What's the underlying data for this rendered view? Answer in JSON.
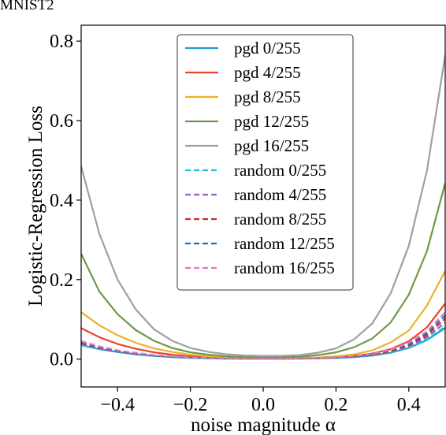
{
  "chart_data": {
    "type": "line",
    "title": "MNIST2",
    "xlabel": "noise magnitude α",
    "ylabel": "Logistic-Regression Loss",
    "xlim": [
      -0.5,
      0.5
    ],
    "ylim": [
      -0.07,
      0.84
    ],
    "xticks": [
      -0.4,
      -0.2,
      0.0,
      0.2,
      0.4
    ],
    "xtick_labels": [
      "−0.4",
      "−0.2",
      "0.0",
      "0.2",
      "0.4"
    ],
    "yticks": [
      0.0,
      0.2,
      0.4,
      0.6,
      0.8
    ],
    "ytick_labels": [
      "0.0",
      "0.2",
      "0.4",
      "0.6",
      "0.8"
    ],
    "grid": false,
    "legend_position": "top-center",
    "x": [
      -0.5,
      -0.45,
      -0.4,
      -0.35,
      -0.3,
      -0.25,
      -0.2,
      -0.15,
      -0.1,
      -0.05,
      0.0,
      0.05,
      0.1,
      0.15,
      0.2,
      0.25,
      0.3,
      0.35,
      0.4,
      0.45,
      0.5
    ],
    "series": [
      {
        "name": "pgd 0/255",
        "style": "solid",
        "color": "#1f9bd4",
        "values": [
          0.035,
          0.025,
          0.018,
          0.012,
          0.008,
          0.005,
          0.003,
          0.002,
          0.001,
          0.001,
          0.001,
          0.001,
          0.001,
          0.002,
          0.003,
          0.005,
          0.009,
          0.016,
          0.028,
          0.048,
          0.078
        ]
      },
      {
        "name": "pgd 4/255",
        "style": "solid",
        "color": "#e8452c",
        "values": [
          0.078,
          0.055,
          0.038,
          0.026,
          0.017,
          0.011,
          0.007,
          0.004,
          0.003,
          0.002,
          0.002,
          0.002,
          0.002,
          0.003,
          0.005,
          0.008,
          0.014,
          0.025,
          0.045,
          0.08,
          0.14
        ]
      },
      {
        "name": "pgd 8/255",
        "style": "solid",
        "color": "#edb12c",
        "values": [
          0.118,
          0.085,
          0.06,
          0.041,
          0.027,
          0.018,
          0.011,
          0.007,
          0.004,
          0.003,
          0.003,
          0.003,
          0.003,
          0.004,
          0.007,
          0.012,
          0.022,
          0.042,
          0.072,
          0.135,
          0.222
        ]
      },
      {
        "name": "pgd 12/255",
        "style": "solid",
        "color": "#6e9a45",
        "values": [
          0.265,
          0.17,
          0.113,
          0.073,
          0.046,
          0.028,
          0.017,
          0.011,
          0.007,
          0.005,
          0.005,
          0.005,
          0.006,
          0.01,
          0.017,
          0.03,
          0.052,
          0.092,
          0.162,
          0.272,
          0.443
        ]
      },
      {
        "name": "pgd 16/255",
        "style": "solid",
        "color": "#a0a0a0",
        "values": [
          0.485,
          0.315,
          0.2,
          0.125,
          0.075,
          0.046,
          0.028,
          0.018,
          0.012,
          0.009,
          0.008,
          0.008,
          0.01,
          0.016,
          0.027,
          0.05,
          0.09,
          0.165,
          0.285,
          0.475,
          0.765
        ]
      },
      {
        "name": "random 0/255",
        "style": "dashed",
        "color": "#26c3d6",
        "values": [
          0.035,
          0.025,
          0.018,
          0.012,
          0.008,
          0.005,
          0.003,
          0.002,
          0.001,
          0.001,
          0.001,
          0.001,
          0.001,
          0.002,
          0.003,
          0.005,
          0.009,
          0.016,
          0.029,
          0.05,
          0.082
        ]
      },
      {
        "name": "random 4/255",
        "style": "dashed",
        "color": "#8e63b8",
        "values": [
          0.038,
          0.027,
          0.019,
          0.013,
          0.009,
          0.006,
          0.004,
          0.002,
          0.002,
          0.001,
          0.001,
          0.001,
          0.002,
          0.002,
          0.004,
          0.006,
          0.01,
          0.018,
          0.032,
          0.055,
          0.092
        ]
      },
      {
        "name": "random 8/255",
        "style": "dashed",
        "color": "#d62728",
        "values": [
          0.04,
          0.029,
          0.02,
          0.014,
          0.009,
          0.006,
          0.004,
          0.003,
          0.002,
          0.001,
          0.001,
          0.001,
          0.002,
          0.002,
          0.004,
          0.007,
          0.011,
          0.02,
          0.035,
          0.06,
          0.102
        ]
      },
      {
        "name": "random 12/255",
        "style": "dashed",
        "color": "#1f6fb4",
        "values": [
          0.042,
          0.03,
          0.021,
          0.015,
          0.01,
          0.006,
          0.004,
          0.003,
          0.002,
          0.001,
          0.001,
          0.001,
          0.002,
          0.003,
          0.004,
          0.007,
          0.012,
          0.022,
          0.038,
          0.065,
          0.11
        ]
      },
      {
        "name": "random 16/255",
        "style": "dashed",
        "color": "#e377c2",
        "values": [
          0.045,
          0.032,
          0.022,
          0.016,
          0.01,
          0.007,
          0.004,
          0.003,
          0.002,
          0.001,
          0.001,
          0.001,
          0.002,
          0.003,
          0.005,
          0.008,
          0.013,
          0.024,
          0.041,
          0.07,
          0.118
        ]
      }
    ]
  }
}
